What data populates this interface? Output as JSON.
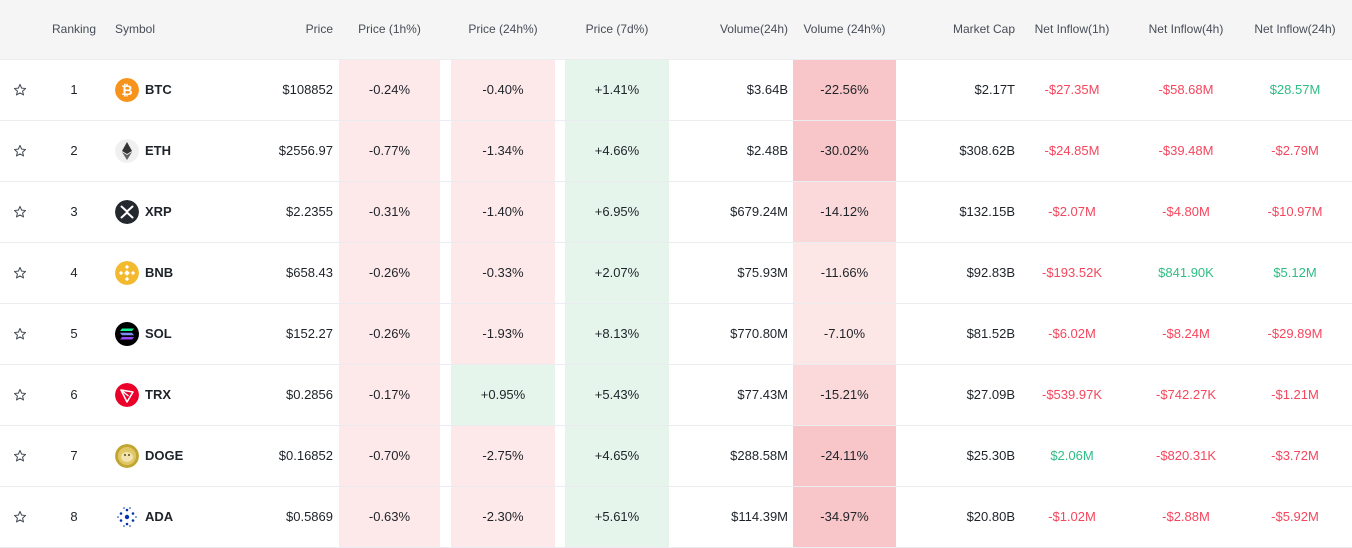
{
  "headers": {
    "ranking": "Ranking",
    "symbol": "Symbol",
    "price": "Price",
    "price_1h": "Price (1h%)",
    "price_24h": "Price (24h%)",
    "price_7d": "Price (7d%)",
    "volume_24h": "Volume(24h)",
    "volume_24h_pct": "Volume (24h%)",
    "market_cap": "Market Cap",
    "inflow_1h": "Net Inflow(1h)",
    "inflow_4h": "Net Inflow(4h)",
    "inflow_24h": "Net Inflow(24h)"
  },
  "colors": {
    "negative": "#f6465d",
    "positive": "#2ebd85",
    "header_bg": "#f5f5f5",
    "divider": "#eaecef"
  },
  "rows": [
    {
      "rank": "1",
      "symbol": "BTC",
      "icon": "bitcoin-icon",
      "icon_color": "#f7931a",
      "price": "$108852",
      "price_1h": "-0.24%",
      "price_24h": "-0.40%",
      "price_7d": "+1.41%",
      "volume": "$3.64B",
      "volume_pct": "-22.56%",
      "market_cap": "$2.17T",
      "inflow_1h": "-$27.35M",
      "inflow_4h": "-$58.68M",
      "inflow_24h": "$28.57M"
    },
    {
      "rank": "2",
      "symbol": "ETH",
      "icon": "ethereum-icon",
      "icon_color": "#f0f0f0",
      "price": "$2556.97",
      "price_1h": "-0.77%",
      "price_24h": "-1.34%",
      "price_7d": "+4.66%",
      "volume": "$2.48B",
      "volume_pct": "-30.02%",
      "market_cap": "$308.62B",
      "inflow_1h": "-$24.85M",
      "inflow_4h": "-$39.48M",
      "inflow_24h": "-$2.79M"
    },
    {
      "rank": "3",
      "symbol": "XRP",
      "icon": "xrp-icon",
      "icon_color": "#23292f",
      "price": "$2.2355",
      "price_1h": "-0.31%",
      "price_24h": "-1.40%",
      "price_7d": "+6.95%",
      "volume": "$679.24M",
      "volume_pct": "-14.12%",
      "market_cap": "$132.15B",
      "inflow_1h": "-$2.07M",
      "inflow_4h": "-$4.80M",
      "inflow_24h": "-$10.97M"
    },
    {
      "rank": "4",
      "symbol": "BNB",
      "icon": "bnb-icon",
      "icon_color": "#f3ba2f",
      "price": "$658.43",
      "price_1h": "-0.26%",
      "price_24h": "-0.33%",
      "price_7d": "+2.07%",
      "volume": "$75.93M",
      "volume_pct": "-11.66%",
      "market_cap": "$92.83B",
      "inflow_1h": "-$193.52K",
      "inflow_4h": "$841.90K",
      "inflow_24h": "$5.12M"
    },
    {
      "rank": "5",
      "symbol": "SOL",
      "icon": "solana-icon",
      "icon_color": "#000000",
      "price": "$152.27",
      "price_1h": "-0.26%",
      "price_24h": "-1.93%",
      "price_7d": "+8.13%",
      "volume": "$770.80M",
      "volume_pct": "-7.10%",
      "market_cap": "$81.52B",
      "inflow_1h": "-$6.02M",
      "inflow_4h": "-$8.24M",
      "inflow_24h": "-$29.89M"
    },
    {
      "rank": "6",
      "symbol": "TRX",
      "icon": "tron-icon",
      "icon_color": "#eb0029",
      "price": "$0.2856",
      "price_1h": "-0.17%",
      "price_24h": "+0.95%",
      "price_7d": "+5.43%",
      "volume": "$77.43M",
      "volume_pct": "-15.21%",
      "market_cap": "$27.09B",
      "inflow_1h": "-$539.97K",
      "inflow_4h": "-$742.27K",
      "inflow_24h": "-$1.21M"
    },
    {
      "rank": "7",
      "symbol": "DOGE",
      "icon": "dogecoin-icon",
      "icon_color": "#c2a633",
      "price": "$0.16852",
      "price_1h": "-0.70%",
      "price_24h": "-2.75%",
      "price_7d": "+4.65%",
      "volume": "$288.58M",
      "volume_pct": "-24.11%",
      "market_cap": "$25.30B",
      "inflow_1h": "$2.06M",
      "inflow_4h": "-$820.31K",
      "inflow_24h": "-$3.72M"
    },
    {
      "rank": "8",
      "symbol": "ADA",
      "icon": "cardano-icon",
      "icon_color": "#ffffff",
      "price": "$0.5869",
      "price_1h": "-0.63%",
      "price_24h": "-2.30%",
      "price_7d": "+5.61%",
      "volume": "$114.39M",
      "volume_pct": "-34.97%",
      "market_cap": "$20.80B",
      "inflow_1h": "-$1.02M",
      "inflow_4h": "-$2.88M",
      "inflow_24h": "-$5.92M"
    }
  ]
}
